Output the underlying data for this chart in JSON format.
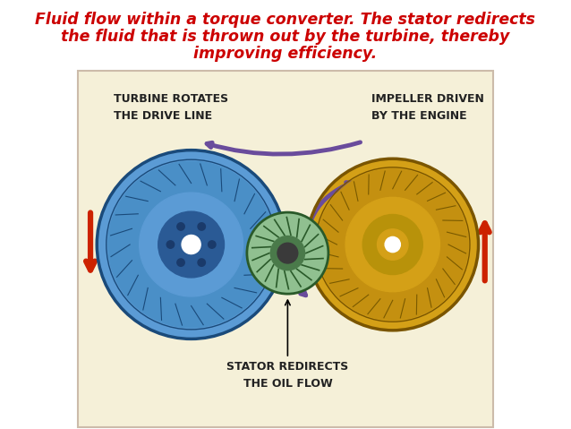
{
  "title_line1": "Fluid flow within a torque converter. The stator redirects",
  "title_line2": "the fluid that is thrown out by the turbine, thereby",
  "title_line3": "improving efficiency.",
  "title_color": "#cc0000",
  "title_fontsize": 12.5,
  "bg_color": "#ffffff",
  "diagram_bg": "#f5f0d8",
  "diagram_border": "#ccbbaa",
  "label_turbine_1": "TURBINE ROTATES",
  "label_turbine_2": "THE DRIVE LINE",
  "label_impeller_1": "IMPELLER DRIVEN",
  "label_impeller_2": "BY THE ENGINE",
  "label_stator_1": "STATOR REDIRECTS",
  "label_stator_2": "THE OIL FLOW",
  "label_fontsize": 9,
  "turbine_color_outer": "#5b9bd5",
  "turbine_color_mid": "#4a8fc7",
  "turbine_color_inner": "#3a7ab5",
  "impeller_color_outer": "#d4a017",
  "impeller_color_mid": "#c49010",
  "impeller_color_inner": "#b48010",
  "stator_color_outer": "#90c090",
  "stator_color_inner": "#70a870",
  "arrow_color": "#6a4c9c",
  "red_arrow_color": "#cc2200"
}
